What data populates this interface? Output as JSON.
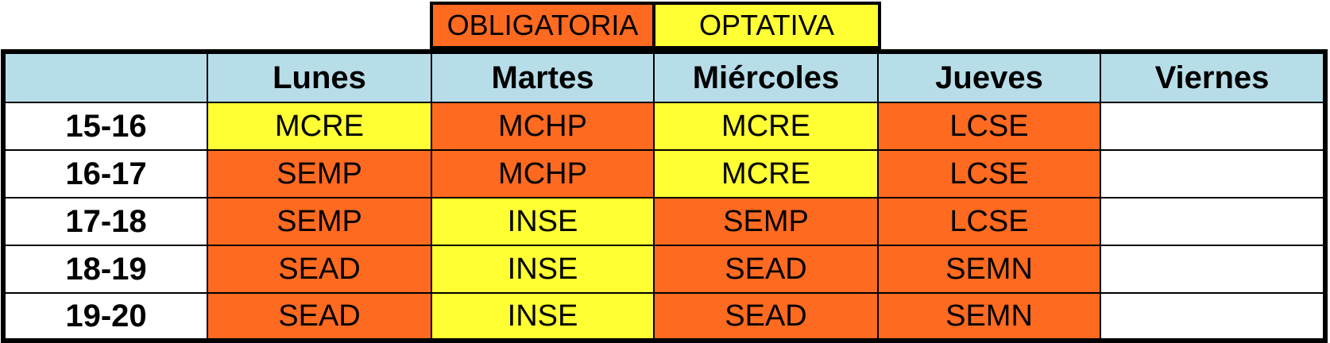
{
  "legend": {
    "obligatoria": "OBLIGATORIA",
    "optativa": "OPTATIVA"
  },
  "colors": {
    "obligatoria": "#ff6a21",
    "optativa": "#ffff33",
    "header": "#b7dde8"
  },
  "schedule": {
    "corner": "",
    "days": [
      "Lunes",
      "Martes",
      "Miércoles",
      "Jueves",
      "Viernes"
    ],
    "rows": [
      {
        "time": "15-16",
        "cells": [
          {
            "text": "MCRE",
            "type": "optativa"
          },
          {
            "text": "MCHP",
            "type": "obligatoria"
          },
          {
            "text": "MCRE",
            "type": "optativa"
          },
          {
            "text": "LCSE",
            "type": "obligatoria"
          },
          {
            "text": "",
            "type": "empty"
          }
        ]
      },
      {
        "time": "16-17",
        "cells": [
          {
            "text": "SEMP",
            "type": "obligatoria"
          },
          {
            "text": "MCHP",
            "type": "obligatoria"
          },
          {
            "text": "MCRE",
            "type": "optativa"
          },
          {
            "text": "LCSE",
            "type": "obligatoria"
          },
          {
            "text": "",
            "type": "empty"
          }
        ]
      },
      {
        "time": "17-18",
        "cells": [
          {
            "text": "SEMP",
            "type": "obligatoria"
          },
          {
            "text": "INSE",
            "type": "optativa"
          },
          {
            "text": "SEMP",
            "type": "obligatoria"
          },
          {
            "text": "LCSE",
            "type": "obligatoria"
          },
          {
            "text": "",
            "type": "empty"
          }
        ]
      },
      {
        "time": "18-19",
        "cells": [
          {
            "text": "SEAD",
            "type": "obligatoria"
          },
          {
            "text": "INSE",
            "type": "optativa"
          },
          {
            "text": "SEAD",
            "type": "obligatoria"
          },
          {
            "text": "SEMN",
            "type": "obligatoria"
          },
          {
            "text": "",
            "type": "empty"
          }
        ]
      },
      {
        "time": "19-20",
        "cells": [
          {
            "text": "SEAD",
            "type": "obligatoria"
          },
          {
            "text": "INSE",
            "type": "optativa"
          },
          {
            "text": "SEAD",
            "type": "obligatoria"
          },
          {
            "text": "SEMN",
            "type": "obligatoria"
          },
          {
            "text": "",
            "type": "empty"
          }
        ]
      }
    ]
  }
}
